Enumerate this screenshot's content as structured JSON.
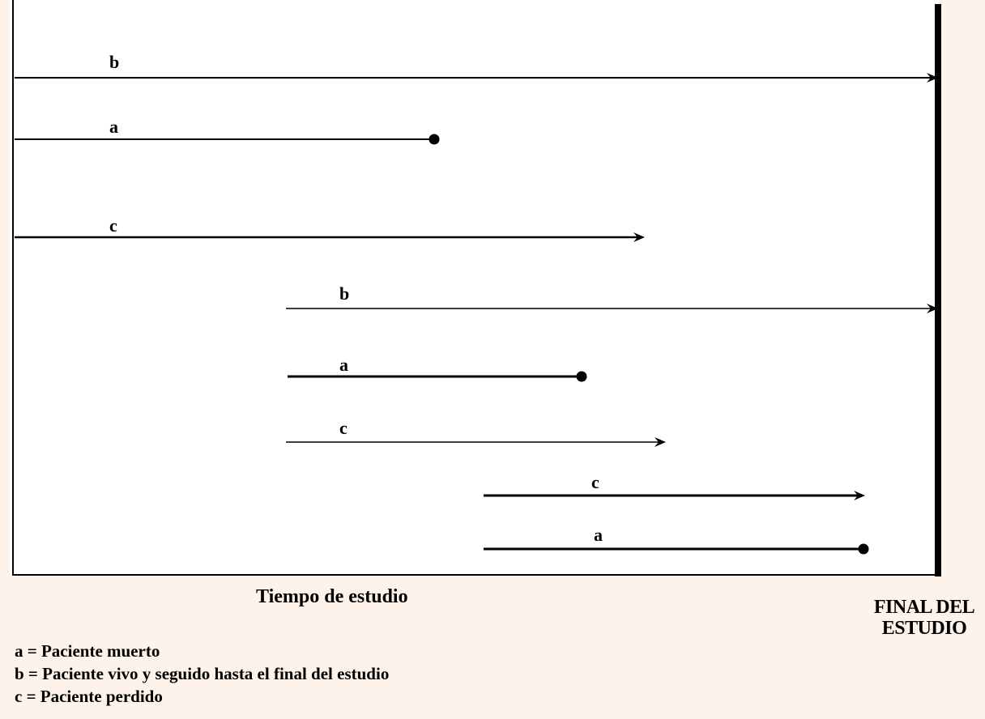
{
  "diagram": {
    "x_axis_label": "Tiempo de estudio",
    "end_label_line1": "FINAL DEL",
    "end_label_line2": "ESTUDIO",
    "segments": [
      {
        "label": "b",
        "outcome": "arrow_to_end"
      },
      {
        "label": "a",
        "outcome": "dot"
      },
      {
        "label": "c",
        "outcome": "arrow"
      },
      {
        "label": "b",
        "outcome": "arrow_to_end"
      },
      {
        "label": "a",
        "outcome": "dot"
      },
      {
        "label": "c",
        "outcome": "arrow"
      },
      {
        "label": "c",
        "outcome": "arrow"
      },
      {
        "label": "a",
        "outcome": "dot"
      }
    ]
  },
  "legend": [
    "a = Paciente muerto",
    "b = Paciente vivo y seguido hasta el final del estudio",
    "c = Paciente perdido"
  ]
}
